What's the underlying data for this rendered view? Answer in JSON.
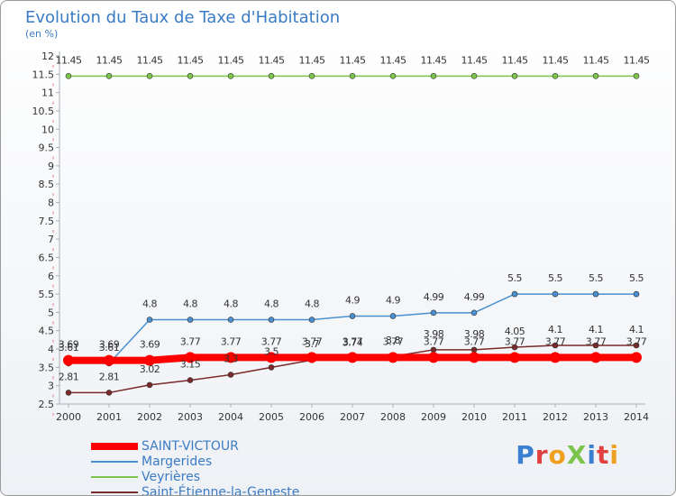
{
  "chart_data": {
    "type": "line",
    "title": "Evolution du Taux de Taxe d'Habitation",
    "subtitle": "(en %)",
    "x": [
      2000,
      2001,
      2002,
      2003,
      2004,
      2005,
      2006,
      2007,
      2008,
      2009,
      2010,
      2011,
      2012,
      2013,
      2014
    ],
    "ylim": [
      2.5,
      12
    ],
    "yticks": [
      2.5,
      3,
      3.5,
      4,
      4.5,
      5,
      5.5,
      6,
      6.5,
      7,
      7.5,
      8,
      8.5,
      9,
      9.5,
      10,
      10.5,
      11,
      11.5,
      12
    ],
    "grid": false,
    "legend_position": "bottom-left",
    "series": [
      {
        "name": "SAINT-VICTOUR",
        "color": "#ff0000",
        "values": [
          3.69,
          3.69,
          3.69,
          3.77,
          3.77,
          3.77,
          3.77,
          3.77,
          3.77,
          3.77,
          3.77,
          3.77,
          3.77,
          3.77,
          3.77
        ],
        "labels": [
          "3.69",
          "3.69",
          "3.69",
          "3.77",
          "3.77",
          "3.77",
          "3.77",
          "3.77",
          "3.77",
          "3.77",
          "3.77",
          "3.77",
          "3.77",
          "3.77",
          "3.77"
        ]
      },
      {
        "name": "Margerides",
        "color": "#4a90d0",
        "values": [
          3.61,
          3.61,
          4.8,
          4.8,
          4.8,
          4.8,
          4.8,
          4.9,
          4.9,
          4.99,
          4.99,
          5.5,
          5.5,
          5.5,
          5.5
        ],
        "labels": [
          "3.61",
          "3.61",
          "4.8",
          "4.8",
          "4.8",
          "4.8",
          "4.8",
          "4.9",
          "4.9",
          "4.99",
          "4.99",
          "5.5",
          "5.5",
          "5.5",
          "5.5"
        ]
      },
      {
        "name": "Veyrières",
        "color": "#7dc44a",
        "values": [
          11.45,
          11.45,
          11.45,
          11.45,
          11.45,
          11.45,
          11.45,
          11.45,
          11.45,
          11.45,
          11.45,
          11.45,
          11.45,
          11.45,
          11.45
        ],
        "labels": [
          "11.45",
          "11.45",
          "11.45",
          "11.45",
          "11.45",
          "11.45",
          "11.45",
          "11.45",
          "11.45",
          "11.45",
          "11.45",
          "11.45",
          "11.45",
          "11.45",
          "11.45"
        ]
      },
      {
        "name": "Saint-Étienne-la-Geneste",
        "color": "#7a2a2a",
        "values": [
          2.81,
          2.81,
          3.02,
          3.15,
          3.3,
          3.5,
          3.7,
          3.74,
          3.8,
          3.98,
          3.98,
          4.05,
          4.1,
          4.1,
          4.1
        ],
        "labels": [
          "2.81",
          "2.81",
          "3.02",
          "3.15",
          "3.3",
          "3.5",
          "3.7",
          "3.74",
          "3.8",
          "3.98",
          "3.98",
          "4.05",
          "4.1",
          "4.1",
          "4.1"
        ]
      }
    ]
  },
  "brand": "ProXiti"
}
